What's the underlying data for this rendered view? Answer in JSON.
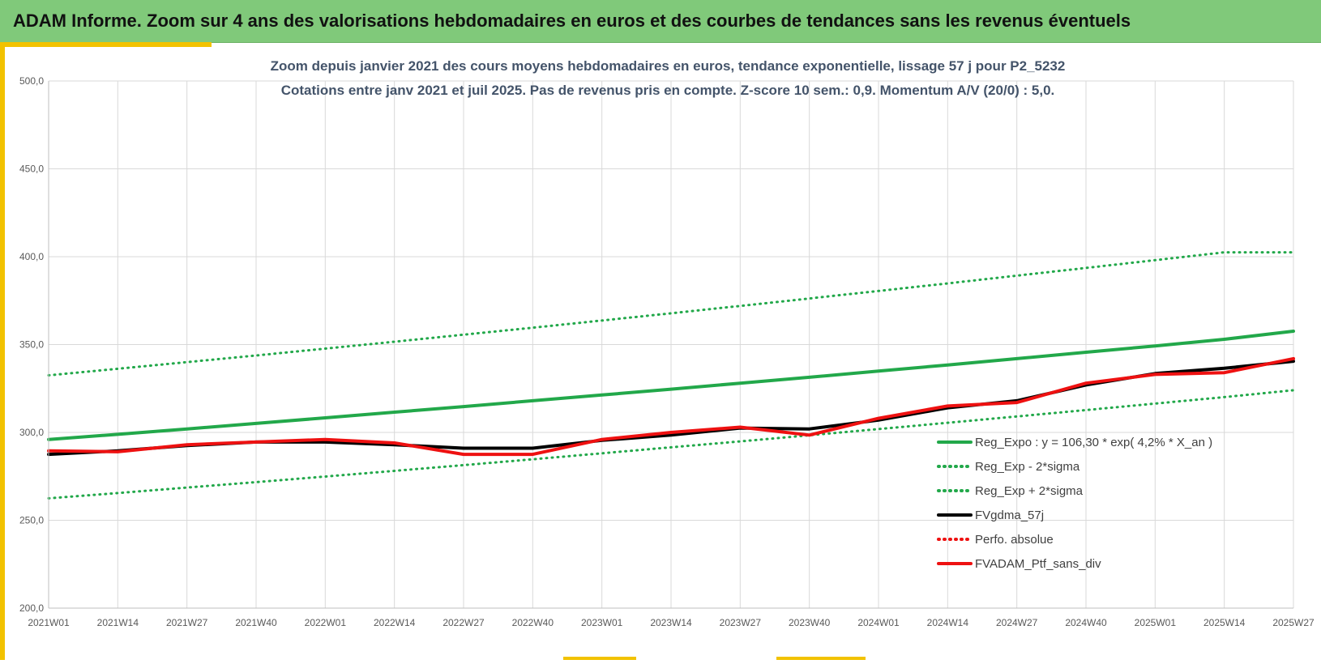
{
  "header": {
    "title": "ADAM Informe. Zoom sur 4 ans des valorisations hebdomadaires en euros et des courbes de tendances sans les revenus éventuels"
  },
  "colors": {
    "banner": "#80c97a",
    "accent": "#f2c200",
    "trend": "#22a84a",
    "smooth": "#000000",
    "portfolio": "#ee1111",
    "grid": "#d9d9d9"
  },
  "chart_data": {
    "type": "line",
    "title": "Zoom depuis janvier 2021 des cours moyens hebdomadaires  en euros, tendance exponentielle, lissage 57 j pour P2_5232",
    "subtitle": "Cotations entre janv 2021 et juil 2025. Pas de revenus pris en compte. Z-score 10 sem.: 0,9. Momentum A/V (20/0) : 5,0.",
    "xlabel": "",
    "ylabel": "",
    "ylim": [
      200,
      500
    ],
    "yticks": [
      "200,0",
      "250,0",
      "300,0",
      "350,0",
      "400,0",
      "450,0",
      "500,0"
    ],
    "xticks": [
      "2021W01",
      "2021W14",
      "2021W27",
      "2021W40",
      "2022W01",
      "2022W14",
      "2022W27",
      "2022W40",
      "2023W01",
      "2023W14",
      "2023W27",
      "2023W40",
      "2024W01",
      "2024W14",
      "2024W27",
      "2024W40",
      "2025W01",
      "2025W14",
      "2025W27"
    ],
    "grid": true,
    "legend_position": "bottom-right",
    "series": [
      {
        "name": "Reg_Expo : y = 106,30 * exp( 4,2% *  X_an )",
        "style": "solid",
        "color": "#22a84a",
        "values": [
          296.0,
          298.9,
          302.0,
          305.1,
          308.3,
          311.5,
          314.7,
          318.0,
          321.3,
          324.6,
          328.0,
          331.4,
          334.9,
          338.4,
          342.0,
          345.6,
          349.2,
          353.0,
          357.6
        ]
      },
      {
        "name": "Reg_Exp - 2*sigma",
        "style": "dotted",
        "color": "#22a84a",
        "values": [
          262.5,
          265.5,
          268.6,
          271.7,
          274.9,
          278.1,
          281.4,
          284.7,
          288.1,
          291.5,
          294.9,
          298.4,
          301.9,
          305.5,
          309.1,
          312.7,
          316.4,
          320.1,
          324.0
        ]
      },
      {
        "name": "Reg_Exp + 2*sigma",
        "style": "dotted",
        "color": "#22a84a",
        "values": [
          332.5,
          336.2,
          340.0,
          343.8,
          347.7,
          351.6,
          355.6,
          359.6,
          363.7,
          367.8,
          372.0,
          376.2,
          380.5,
          384.8,
          389.2,
          393.6,
          398.0,
          402.5,
          402.5
        ]
      },
      {
        "name": "FVgdma_57j",
        "style": "solid",
        "color": "#000000",
        "values": [
          287.5,
          289.5,
          292.5,
          294.5,
          294.5,
          293.0,
          291.0,
          291.0,
          295.5,
          298.5,
          302.5,
          302.0,
          307.0,
          314.0,
          318.0,
          327.0,
          333.5,
          336.5,
          340.5
        ]
      },
      {
        "name": "Perfo. absolue",
        "style": "dotted",
        "color": "#ee1111",
        "values": []
      },
      {
        "name": "FVADAM_Ptf_sans_div",
        "style": "solid",
        "color": "#ee1111",
        "values": [
          289.5,
          289.0,
          293.0,
          294.5,
          296.0,
          294.0,
          287.5,
          287.5,
          296.0,
          300.0,
          303.0,
          298.5,
          308.0,
          315.0,
          317.0,
          328.0,
          333.0,
          334.0,
          342.0
        ]
      }
    ]
  }
}
